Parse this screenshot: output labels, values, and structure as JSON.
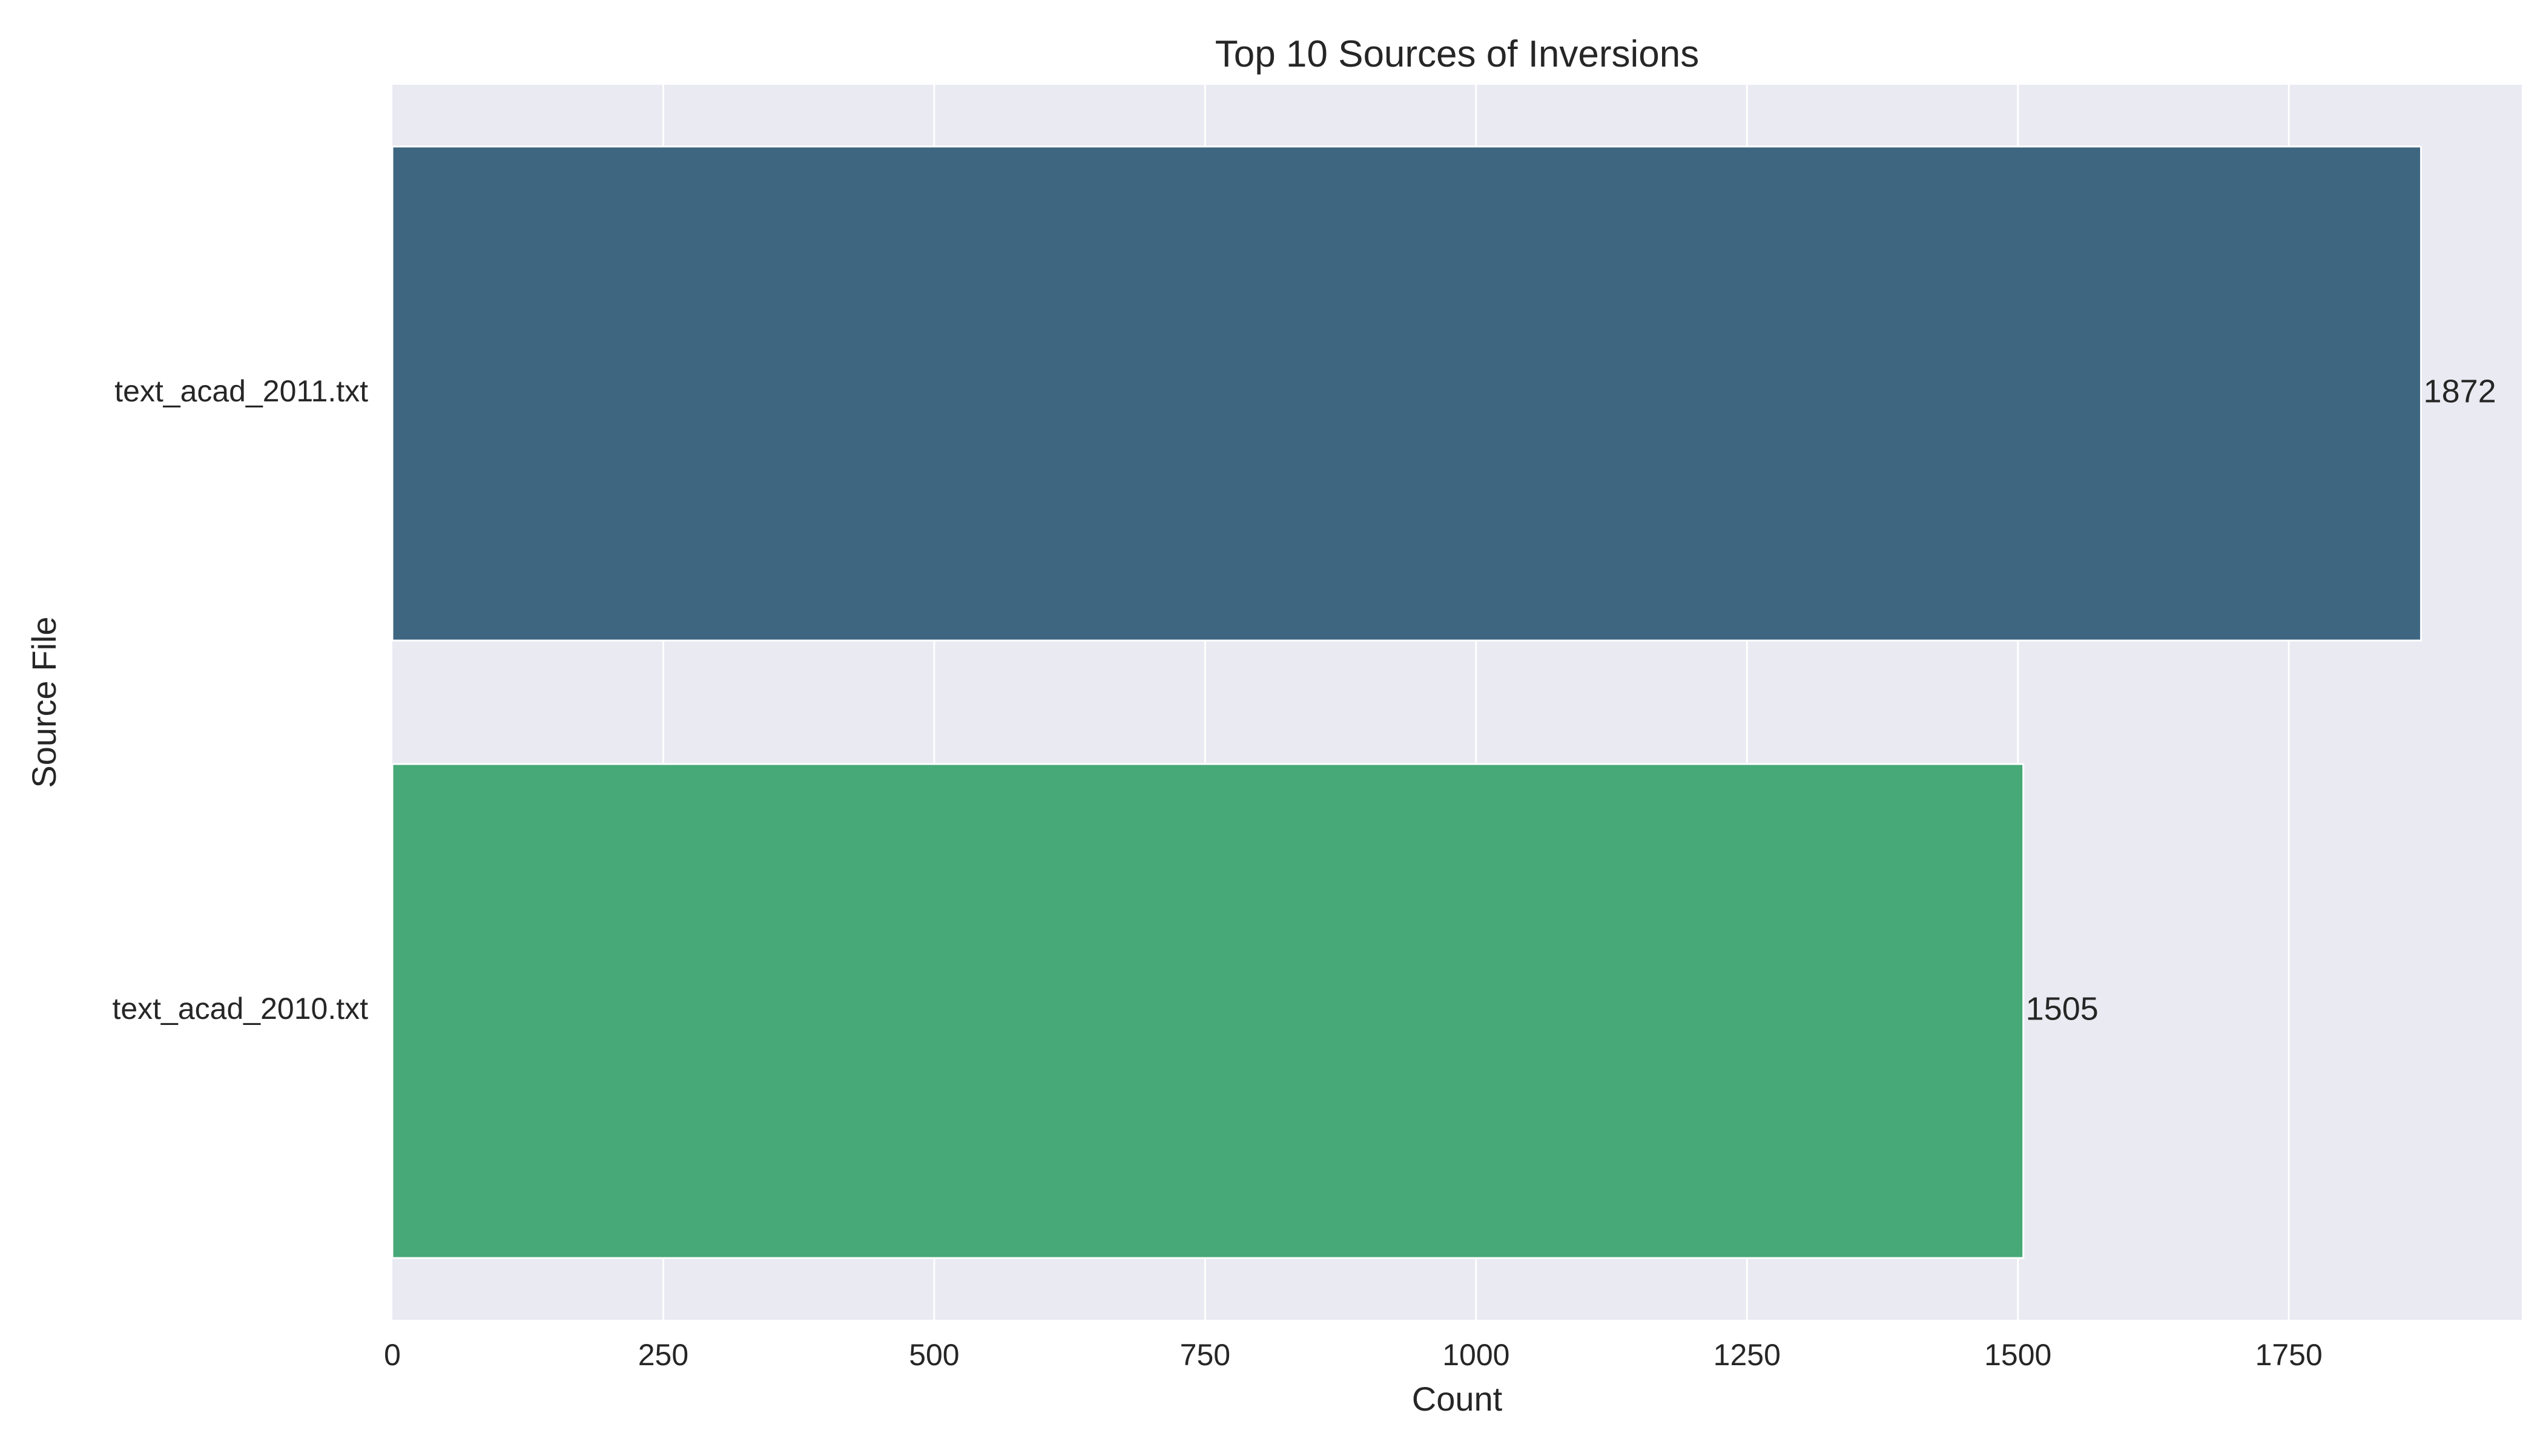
{
  "chart_data": {
    "type": "bar",
    "orientation": "horizontal",
    "title": "Top 10 Sources of Inversions",
    "xlabel": "Count",
    "ylabel": "Source File",
    "categories": [
      "text_acad_2011.txt",
      "text_acad_2010.txt"
    ],
    "values": [
      1872,
      1505
    ],
    "data_labels": [
      "1872",
      "1505"
    ],
    "bar_colors": [
      "#3e6681",
      "#47a878"
    ],
    "xlim": [
      0,
      1965
    ],
    "xticks": [
      0,
      250,
      500,
      750,
      1000,
      1250,
      1500,
      1750
    ],
    "xtick_labels": [
      "0",
      "250",
      "500",
      "750",
      "1000",
      "1250",
      "1500",
      "1750"
    ],
    "grid": true,
    "background": "#eaeaf2",
    "grid_color": "#ffffff"
  }
}
